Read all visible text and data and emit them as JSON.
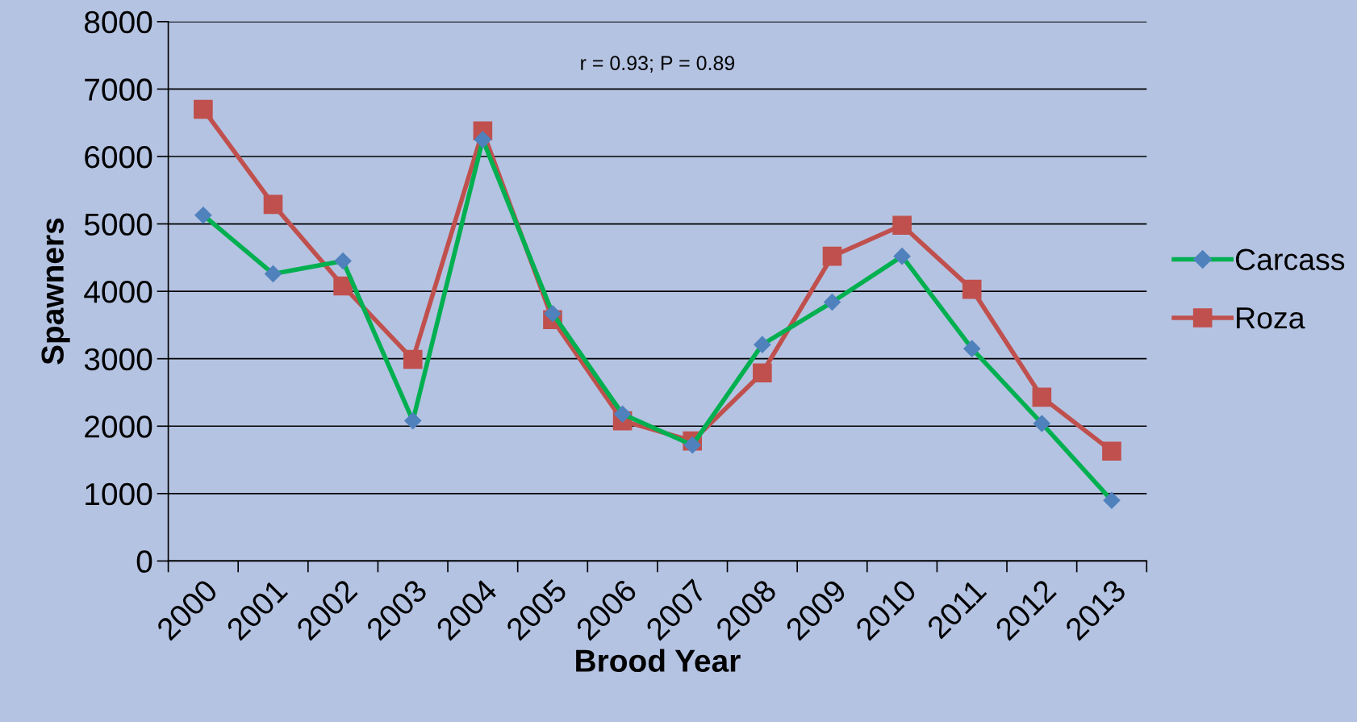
{
  "chart_data": {
    "type": "line",
    "xlabel": "Brood Year",
    "ylabel": "Spawners",
    "annotations": [
      "r = 0.93; P = 0.89"
    ],
    "categories": [
      "2000",
      "2001",
      "2002",
      "2003",
      "2004",
      "2005",
      "2006",
      "2007",
      "2008",
      "2009",
      "2010",
      "2011",
      "2012",
      "2013"
    ],
    "series": [
      {
        "name": "Carcass",
        "color": "#00b050",
        "colors": [
          "#4f81bd",
          "#4f81bd",
          "#4f81bd",
          "#4f81bd",
          "#4f81bd",
          "#4f81bd",
          "#4f81bd",
          "#4f81bd",
          "#4f81bd",
          "#4f81bd",
          "#4f81bd",
          "#4f81bd",
          "#4f81bd",
          "#4f81bd"
        ],
        "marker": "diamond",
        "values": [
          5130,
          4260,
          4450,
          2080,
          6250,
          3670,
          2180,
          1720,
          3210,
          3840,
          4520,
          3150,
          2040,
          900
        ]
      },
      {
        "name": "Roza",
        "color": "#c0504d",
        "marker": "square",
        "values": [
          6700,
          5290,
          4080,
          2990,
          6380,
          3580,
          2080,
          1780,
          2790,
          4520,
          4980,
          4030,
          2430,
          1630
        ]
      }
    ],
    "ylim": [
      0,
      8000
    ],
    "yticks": [
      0,
      1000,
      2000,
      3000,
      4000,
      5000,
      6000,
      7000,
      8000
    ],
    "grid": "y",
    "legend": "right",
    "line_style": "solid"
  }
}
